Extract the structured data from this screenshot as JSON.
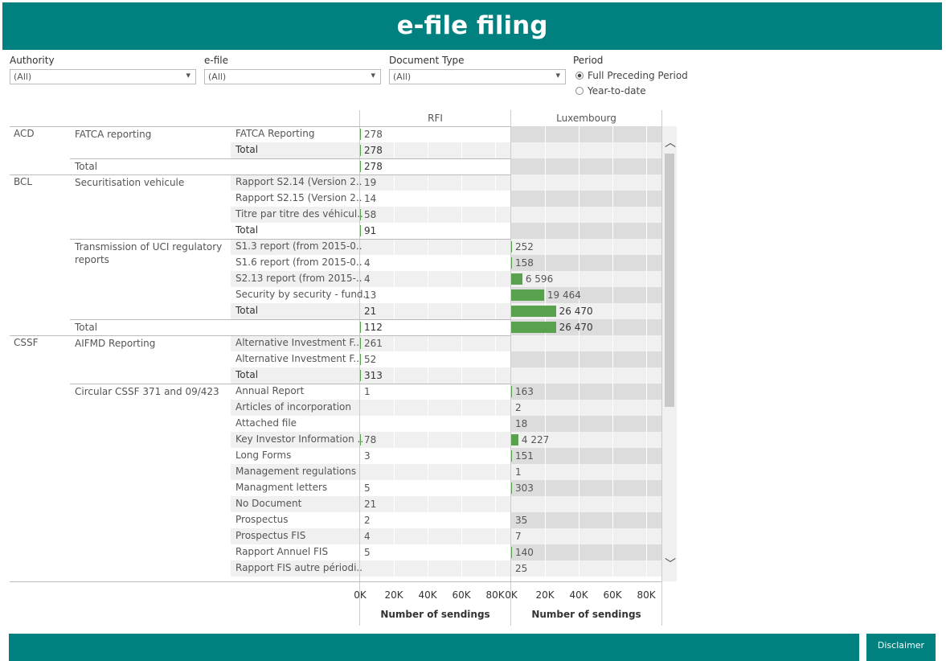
{
  "header": {
    "title": "e-file filing"
  },
  "filters": [
    {
      "label": "Authority",
      "value": "(All)"
    },
    {
      "label": "e-file",
      "value": "(All)"
    },
    {
      "label": "Document Type",
      "value": "(All)"
    }
  ],
  "period": {
    "label": "Period",
    "options": [
      "Full Preceding Period",
      "Year-to-date"
    ],
    "selected": 0
  },
  "footer": {
    "button": "Disclaimer"
  },
  "chart_data": {
    "type": "bar",
    "xlabel": "Number of sendings",
    "authority": [
      "ACD",
      null,
      null,
      "BCL",
      null,
      null,
      null,
      null,
      null,
      null,
      null,
      null,
      null,
      "CSSF",
      null,
      null,
      null,
      null,
      null,
      null,
      null,
      null,
      null,
      null,
      null,
      null,
      null,
      null
    ],
    "efile": [
      "FATCA reporting",
      null,
      "Total",
      "Securitisation vehicule",
      null,
      null,
      null,
      "Transmission of UCI regulatory reports",
      null,
      null,
      null,
      null,
      "Total",
      "AIFMD Reporting",
      null,
      null,
      "Circular CSSF 371 and 09/423",
      null,
      null,
      null,
      null,
      null,
      null,
      null,
      null,
      null,
      null,
      null
    ],
    "categories": [
      "FATCA Reporting",
      "Total",
      null,
      "Rapport S2.14 (Version 2..",
      "Rapport S2.15 (Version 2..",
      "Titre par titre des véhicul..",
      "Total",
      "S1.3 report (from 2015-0..",
      "S1.6 report (from 2015-0..",
      "S2.13 report (from 2015-..",
      "Security by security - fund..",
      "Total",
      null,
      "Alternative Investment F..",
      "Alternative Investment F..",
      "Total",
      "Annual Report",
      "Articles of incorporation",
      "Attached file",
      "Key Investor Information ..",
      "Long Forms",
      "Management regulations",
      "Managment letters",
      "No Document",
      "Prospectus",
      "Prospectus FIS",
      "Rapport Annuel FIS",
      "Rapport FIS autre périodi.."
    ],
    "series": [
      {
        "name": "RFI",
        "color": "#59a14f",
        "values": [
          278,
          278,
          278,
          19,
          14,
          58,
          91,
          null,
          4,
          4,
          13,
          21,
          112,
          261,
          52,
          313,
          1,
          null,
          null,
          78,
          3,
          null,
          5,
          21,
          2,
          4,
          5,
          null
        ]
      },
      {
        "name": "Luxembourg",
        "color": "#59a14f",
        "values": [
          null,
          null,
          null,
          null,
          null,
          null,
          null,
          252,
          158,
          6596,
          19464,
          26470,
          26470,
          null,
          null,
          null,
          163,
          2,
          18,
          4227,
          151,
          1,
          303,
          null,
          35,
          7,
          140,
          25
        ],
        "value_labels": [
          null,
          null,
          null,
          null,
          null,
          null,
          null,
          "252",
          "158",
          "6 596",
          "19 464",
          "26 470",
          "26 470",
          null,
          null,
          null,
          "163",
          "2",
          "18",
          "4 227",
          "151",
          "1",
          "303",
          null,
          "35",
          "7",
          "140",
          "25"
        ]
      }
    ],
    "xlim": [
      0,
      89000
    ],
    "xticks": [
      {
        "value": 0,
        "label": "0K"
      },
      {
        "value": 20000,
        "label": "20K"
      },
      {
        "value": 40000,
        "label": "40K"
      },
      {
        "value": 60000,
        "label": "60K"
      },
      {
        "value": 80000,
        "label": "80K"
      }
    ]
  }
}
